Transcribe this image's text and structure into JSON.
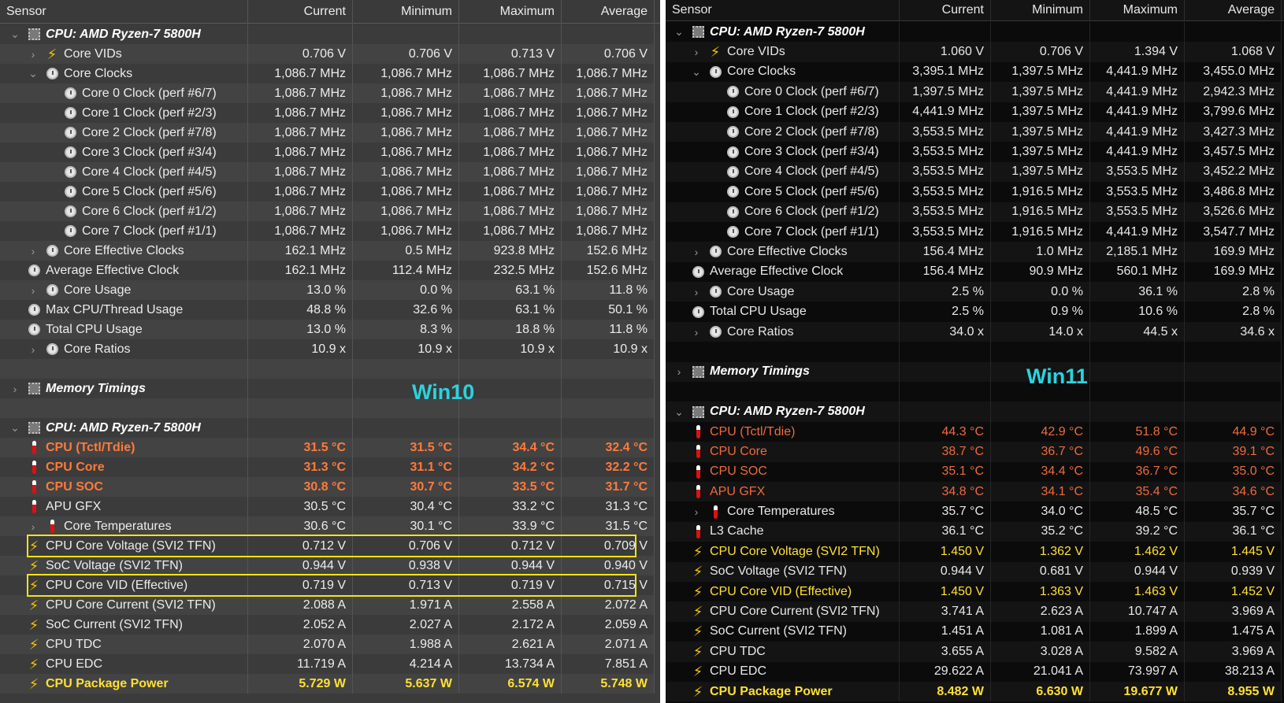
{
  "columns": {
    "sensor": "Sensor",
    "current": "Current",
    "minimum": "Minimum",
    "maximum": "Maximum",
    "average": "Average"
  },
  "labels": {
    "win10": "Win10",
    "win11": "Win11"
  },
  "colors": {
    "win10_bg": "#3b3b3b",
    "win11_bg": "#0b0b0b",
    "orange": "#ff7a3a",
    "yellow": "#ffe033",
    "label": "#2ad3df"
  },
  "win10": [
    {
      "indent": 0,
      "exp": "v",
      "icon": "chip",
      "name": "CPU: AMD Ryzen-7 5800H",
      "style": "group"
    },
    {
      "indent": 1,
      "exp": ">",
      "icon": "bolt",
      "name": "Core VIDs",
      "v": [
        "0.706 V",
        "0.706 V",
        "0.713 V",
        "0.706 V"
      ]
    },
    {
      "indent": 1,
      "exp": "v",
      "icon": "clock",
      "name": "Core Clocks",
      "v": [
        "1,086.7 MHz",
        "1,086.7 MHz",
        "1,086.7 MHz",
        "1,086.7 MHz"
      ]
    },
    {
      "indent": 2,
      "icon": "clock",
      "name": "Core 0 Clock (perf #6/7)",
      "v": [
        "1,086.7 MHz",
        "1,086.7 MHz",
        "1,086.7 MHz",
        "1,086.7 MHz"
      ]
    },
    {
      "indent": 2,
      "icon": "clock",
      "name": "Core 1 Clock (perf #2/3)",
      "v": [
        "1,086.7 MHz",
        "1,086.7 MHz",
        "1,086.7 MHz",
        "1,086.7 MHz"
      ]
    },
    {
      "indent": 2,
      "icon": "clock",
      "name": "Core 2 Clock (perf #7/8)",
      "v": [
        "1,086.7 MHz",
        "1,086.7 MHz",
        "1,086.7 MHz",
        "1,086.7 MHz"
      ]
    },
    {
      "indent": 2,
      "icon": "clock",
      "name": "Core 3 Clock (perf #3/4)",
      "v": [
        "1,086.7 MHz",
        "1,086.7 MHz",
        "1,086.7 MHz",
        "1,086.7 MHz"
      ]
    },
    {
      "indent": 2,
      "icon": "clock",
      "name": "Core 4 Clock (perf #4/5)",
      "v": [
        "1,086.7 MHz",
        "1,086.7 MHz",
        "1,086.7 MHz",
        "1,086.7 MHz"
      ]
    },
    {
      "indent": 2,
      "icon": "clock",
      "name": "Core 5 Clock (perf #5/6)",
      "v": [
        "1,086.7 MHz",
        "1,086.7 MHz",
        "1,086.7 MHz",
        "1,086.7 MHz"
      ]
    },
    {
      "indent": 2,
      "icon": "clock",
      "name": "Core 6 Clock (perf #1/2)",
      "v": [
        "1,086.7 MHz",
        "1,086.7 MHz",
        "1,086.7 MHz",
        "1,086.7 MHz"
      ]
    },
    {
      "indent": 2,
      "icon": "clock",
      "name": "Core 7 Clock (perf #1/1)",
      "v": [
        "1,086.7 MHz",
        "1,086.7 MHz",
        "1,086.7 MHz",
        "1,086.7 MHz"
      ]
    },
    {
      "indent": 1,
      "exp": ">",
      "icon": "clock",
      "name": "Core Effective Clocks",
      "v": [
        "162.1 MHz",
        "0.5 MHz",
        "923.8 MHz",
        "152.6 MHz"
      ]
    },
    {
      "indent": 0,
      "icon": "clock",
      "name": "Average Effective Clock",
      "v": [
        "162.1 MHz",
        "112.4 MHz",
        "232.5 MHz",
        "152.6 MHz"
      ]
    },
    {
      "indent": 1,
      "exp": ">",
      "icon": "clock",
      "name": "Core Usage",
      "v": [
        "13.0 %",
        "0.0 %",
        "63.1 %",
        "11.8 %"
      ]
    },
    {
      "indent": 0,
      "icon": "clock",
      "name": "Max CPU/Thread Usage",
      "v": [
        "48.8 %",
        "32.6 %",
        "63.1 %",
        "50.1 %"
      ]
    },
    {
      "indent": 0,
      "icon": "clock",
      "name": "Total CPU Usage",
      "v": [
        "13.0 %",
        "8.3 %",
        "18.8 %",
        "11.8 %"
      ]
    },
    {
      "indent": 1,
      "exp": ">",
      "icon": "clock",
      "name": "Core Ratios",
      "v": [
        "10.9 x",
        "10.9 x",
        "10.9 x",
        "10.9 x"
      ]
    },
    {
      "blank": true
    },
    {
      "indent": 0,
      "exp": ">",
      "icon": "chip",
      "name": "Memory Timings",
      "style": "group"
    },
    {
      "blank": true
    },
    {
      "indent": 0,
      "exp": "v",
      "icon": "chip",
      "name": "CPU: AMD Ryzen-7 5800H",
      "style": "group"
    },
    {
      "indent": 0,
      "icon": "therm",
      "name": "CPU (Tctl/Tdie)",
      "v": [
        "31.5 °C",
        "31.5 °C",
        "34.4 °C",
        "32.4 °C"
      ],
      "style": "orange"
    },
    {
      "indent": 0,
      "icon": "therm",
      "name": "CPU Core",
      "v": [
        "31.3 °C",
        "31.1 °C",
        "34.2 °C",
        "32.2 °C"
      ],
      "style": "orange"
    },
    {
      "indent": 0,
      "icon": "therm",
      "name": "CPU SOC",
      "v": [
        "30.8 °C",
        "30.7 °C",
        "33.5 °C",
        "31.7 °C"
      ],
      "style": "orange"
    },
    {
      "indent": 0,
      "icon": "therm",
      "name": "APU GFX",
      "v": [
        "30.5 °C",
        "30.4 °C",
        "33.2 °C",
        "31.3 °C"
      ]
    },
    {
      "indent": 1,
      "exp": ">",
      "icon": "therm",
      "name": "Core Temperatures",
      "v": [
        "30.6 °C",
        "30.1 °C",
        "33.9 °C",
        "31.5 °C"
      ]
    },
    {
      "indent": 0,
      "icon": "bolt",
      "name": "CPU Core Voltage (SVI2 TFN)",
      "v": [
        "0.712 V",
        "0.706 V",
        "0.712 V",
        "0.709 V"
      ],
      "boxed": true
    },
    {
      "indent": 0,
      "icon": "bolt",
      "name": "SoC Voltage (SVI2 TFN)",
      "v": [
        "0.944 V",
        "0.938 V",
        "0.944 V",
        "0.940 V"
      ]
    },
    {
      "indent": 0,
      "icon": "bolt",
      "name": "CPU Core VID (Effective)",
      "v": [
        "0.719 V",
        "0.713 V",
        "0.719 V",
        "0.715 V"
      ],
      "boxed": true
    },
    {
      "indent": 0,
      "icon": "bolt",
      "name": "CPU Core Current (SVI2 TFN)",
      "v": [
        "2.088 A",
        "1.971 A",
        "2.558 A",
        "2.072 A"
      ]
    },
    {
      "indent": 0,
      "icon": "bolt",
      "name": "SoC Current (SVI2 TFN)",
      "v": [
        "2.052 A",
        "2.027 A",
        "2.172 A",
        "2.059 A"
      ]
    },
    {
      "indent": 0,
      "icon": "bolt",
      "name": "CPU TDC",
      "v": [
        "2.070 A",
        "1.988 A",
        "2.621 A",
        "2.071 A"
      ]
    },
    {
      "indent": 0,
      "icon": "bolt",
      "name": "CPU EDC",
      "v": [
        "11.719 A",
        "4.214 A",
        "13.734 A",
        "7.851 A"
      ]
    },
    {
      "indent": 0,
      "icon": "bolt",
      "name": "CPU Package Power",
      "v": [
        "5.729 W",
        "5.637 W",
        "6.574 W",
        "5.748 W"
      ],
      "style": "yellow"
    }
  ],
  "win11": [
    {
      "indent": 0,
      "exp": "v",
      "icon": "chip",
      "name": "CPU: AMD Ryzen-7 5800H",
      "style": "group"
    },
    {
      "indent": 1,
      "exp": ">",
      "icon": "bolt",
      "name": "Core VIDs",
      "v": [
        "1.060 V",
        "0.706 V",
        "1.394 V",
        "1.068 V"
      ]
    },
    {
      "indent": 1,
      "exp": "v",
      "icon": "clock",
      "name": "Core Clocks",
      "v": [
        "3,395.1 MHz",
        "1,397.5 MHz",
        "4,441.9 MHz",
        "3,455.0 MHz"
      ]
    },
    {
      "indent": 2,
      "icon": "clock",
      "name": "Core 0 Clock (perf #6/7)",
      "v": [
        "1,397.5 MHz",
        "1,397.5 MHz",
        "4,441.9 MHz",
        "2,942.3 MHz"
      ]
    },
    {
      "indent": 2,
      "icon": "clock",
      "name": "Core 1 Clock (perf #2/3)",
      "v": [
        "4,441.9 MHz",
        "1,397.5 MHz",
        "4,441.9 MHz",
        "3,799.6 MHz"
      ]
    },
    {
      "indent": 2,
      "icon": "clock",
      "name": "Core 2 Clock (perf #7/8)",
      "v": [
        "3,553.5 MHz",
        "1,397.5 MHz",
        "4,441.9 MHz",
        "3,427.3 MHz"
      ]
    },
    {
      "indent": 2,
      "icon": "clock",
      "name": "Core 3 Clock (perf #3/4)",
      "v": [
        "3,553.5 MHz",
        "1,397.5 MHz",
        "4,441.9 MHz",
        "3,457.5 MHz"
      ]
    },
    {
      "indent": 2,
      "icon": "clock",
      "name": "Core 4 Clock (perf #4/5)",
      "v": [
        "3,553.5 MHz",
        "1,397.5 MHz",
        "3,553.5 MHz",
        "3,452.2 MHz"
      ]
    },
    {
      "indent": 2,
      "icon": "clock",
      "name": "Core 5 Clock (perf #5/6)",
      "v": [
        "3,553.5 MHz",
        "1,916.5 MHz",
        "3,553.5 MHz",
        "3,486.8 MHz"
      ]
    },
    {
      "indent": 2,
      "icon": "clock",
      "name": "Core 6 Clock (perf #1/2)",
      "v": [
        "3,553.5 MHz",
        "1,916.5 MHz",
        "3,553.5 MHz",
        "3,526.6 MHz"
      ]
    },
    {
      "indent": 2,
      "icon": "clock",
      "name": "Core 7 Clock (perf #1/1)",
      "v": [
        "3,553.5 MHz",
        "1,916.5 MHz",
        "4,441.9 MHz",
        "3,547.7 MHz"
      ]
    },
    {
      "indent": 1,
      "exp": ">",
      "icon": "clock",
      "name": "Core Effective Clocks",
      "v": [
        "156.4 MHz",
        "1.0 MHz",
        "2,185.1 MHz",
        "169.9 MHz"
      ]
    },
    {
      "indent": 0,
      "icon": "clock",
      "name": "Average Effective Clock",
      "v": [
        "156.4 MHz",
        "90.9 MHz",
        "560.1 MHz",
        "169.9 MHz"
      ]
    },
    {
      "indent": 1,
      "exp": ">",
      "icon": "clock",
      "name": "Core Usage",
      "v": [
        "2.5 %",
        "0.0 %",
        "36.1 %",
        "2.8 %"
      ]
    },
    {
      "indent": 0,
      "icon": "clock",
      "name": "Total CPU Usage",
      "v": [
        "2.5 %",
        "0.9 %",
        "10.6 %",
        "2.8 %"
      ]
    },
    {
      "indent": 1,
      "exp": ">",
      "icon": "clock",
      "name": "Core Ratios",
      "v": [
        "34.0 x",
        "14.0 x",
        "44.5 x",
        "34.6 x"
      ]
    },
    {
      "blank": true
    },
    {
      "indent": 0,
      "exp": ">",
      "icon": "chip",
      "name": "Memory Timings",
      "style": "group"
    },
    {
      "blank": true
    },
    {
      "indent": 0,
      "exp": "v",
      "icon": "chip",
      "name": "CPU: AMD Ryzen-7 5800H",
      "style": "group"
    },
    {
      "indent": 0,
      "icon": "therm",
      "name": "CPU (Tctl/Tdie)",
      "v": [
        "44.3 °C",
        "42.9 °C",
        "51.8 °C",
        "44.9 °C"
      ],
      "style": "orange"
    },
    {
      "indent": 0,
      "icon": "therm",
      "name": "CPU Core",
      "v": [
        "38.7 °C",
        "36.7 °C",
        "49.6 °C",
        "39.1 °C"
      ],
      "style": "orange"
    },
    {
      "indent": 0,
      "icon": "therm",
      "name": "CPU SOC",
      "v": [
        "35.1 °C",
        "34.4 °C",
        "36.7 °C",
        "35.0 °C"
      ],
      "style": "orange"
    },
    {
      "indent": 0,
      "icon": "therm",
      "name": "APU GFX",
      "v": [
        "34.8 °C",
        "34.1 °C",
        "35.4 °C",
        "34.6 °C"
      ],
      "style": "orange"
    },
    {
      "indent": 1,
      "exp": ">",
      "icon": "therm",
      "name": "Core Temperatures",
      "v": [
        "35.7 °C",
        "34.0 °C",
        "48.5 °C",
        "35.7 °C"
      ]
    },
    {
      "indent": 0,
      "icon": "therm",
      "name": "L3 Cache",
      "v": [
        "36.1 °C",
        "35.2 °C",
        "39.2 °C",
        "36.1 °C"
      ]
    },
    {
      "indent": 0,
      "icon": "bolt",
      "name": "CPU Core Voltage (SVI2 TFN)",
      "v": [
        "1.450 V",
        "1.362 V",
        "1.462 V",
        "1.445 V"
      ],
      "style": "yellow"
    },
    {
      "indent": 0,
      "icon": "bolt",
      "name": "SoC Voltage (SVI2 TFN)",
      "v": [
        "0.944 V",
        "0.681 V",
        "0.944 V",
        "0.939 V"
      ]
    },
    {
      "indent": 0,
      "icon": "bolt",
      "name": "CPU Core VID (Effective)",
      "v": [
        "1.450 V",
        "1.363 V",
        "1.463 V",
        "1.452 V"
      ],
      "style": "yellow"
    },
    {
      "indent": 0,
      "icon": "bolt",
      "name": "CPU Core Current (SVI2 TFN)",
      "v": [
        "3.741 A",
        "2.623 A",
        "10.747 A",
        "3.969 A"
      ]
    },
    {
      "indent": 0,
      "icon": "bolt",
      "name": "SoC Current (SVI2 TFN)",
      "v": [
        "1.451 A",
        "1.081 A",
        "1.899 A",
        "1.475 A"
      ]
    },
    {
      "indent": 0,
      "icon": "bolt",
      "name": "CPU TDC",
      "v": [
        "3.655 A",
        "3.028 A",
        "9.582 A",
        "3.969 A"
      ]
    },
    {
      "indent": 0,
      "icon": "bolt",
      "name": "CPU EDC",
      "v": [
        "29.622 A",
        "21.041 A",
        "73.997 A",
        "38.213 A"
      ]
    },
    {
      "indent": 0,
      "icon": "bolt",
      "name": "CPU Package Power",
      "v": [
        "8.482 W",
        "6.630 W",
        "19.677 W",
        "8.955 W"
      ],
      "style": "yellow-bold"
    }
  ]
}
